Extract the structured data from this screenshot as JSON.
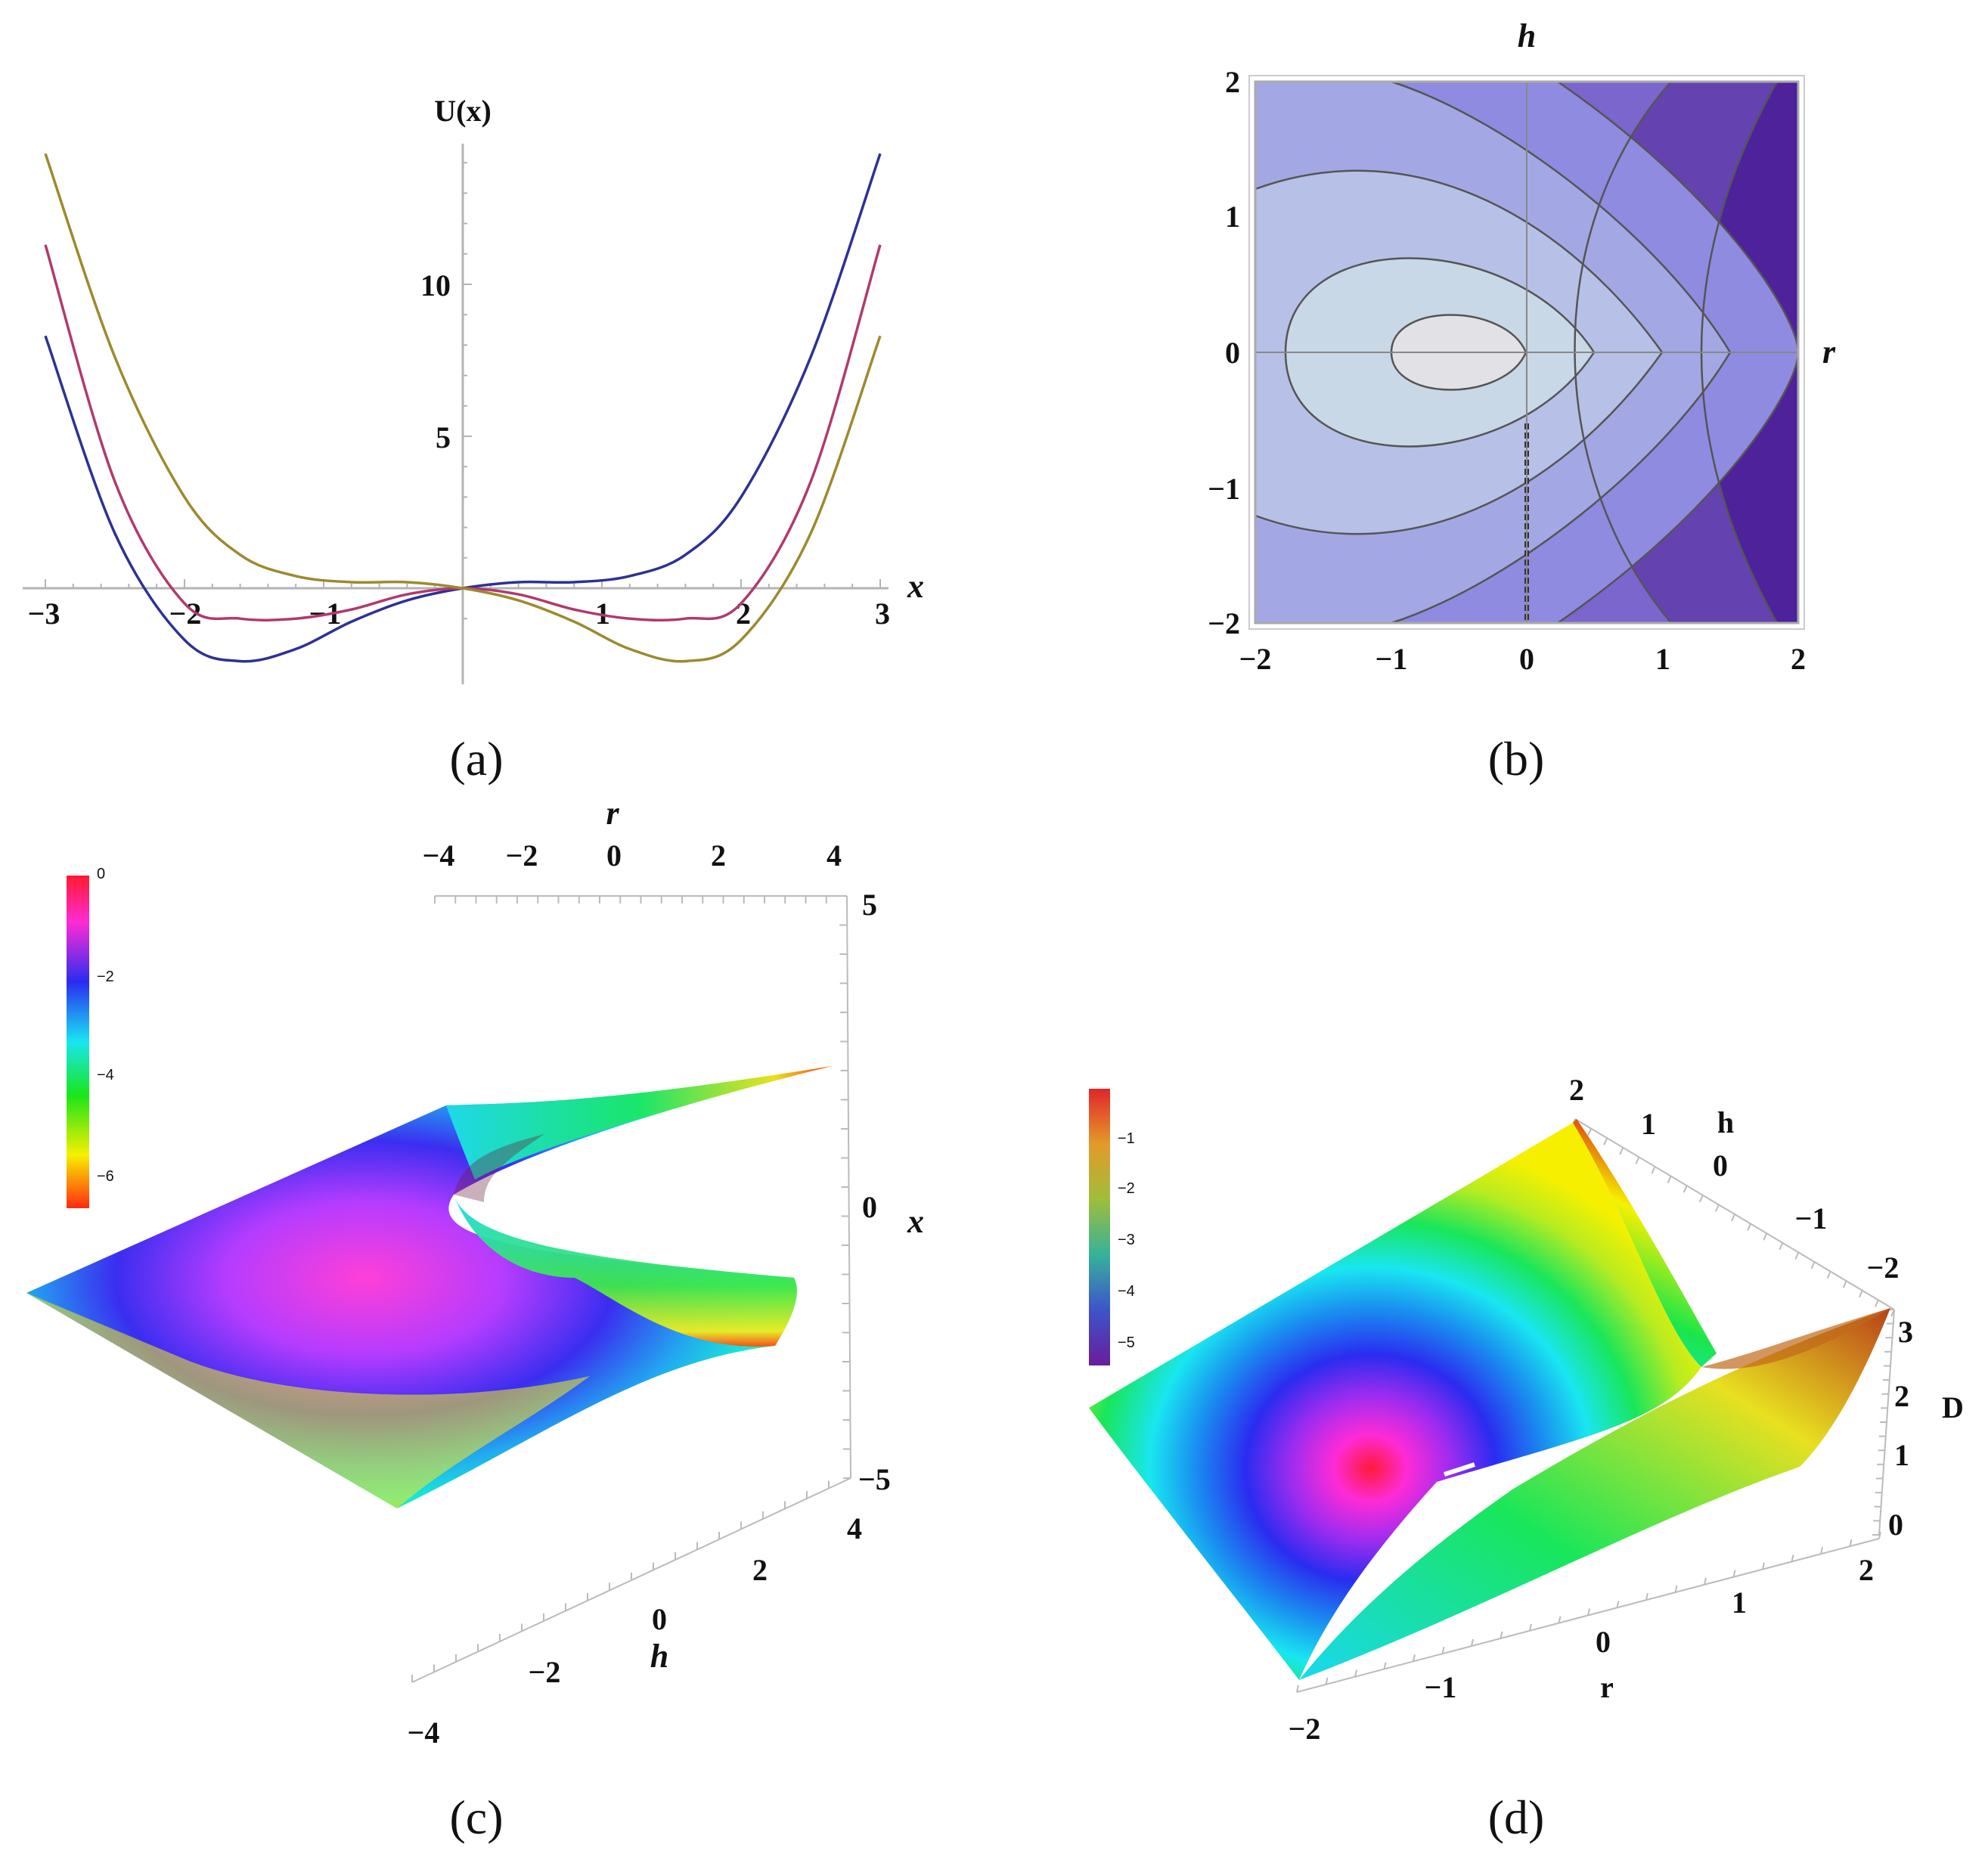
{
  "chart_data": [
    {
      "panel": "a",
      "type": "line",
      "caption": "(a)",
      "xlabel": "x",
      "ylabel": "U(x)",
      "xlim": [
        -3,
        3
      ],
      "ylim": [
        -3,
        14
      ],
      "xticks": [
        "−3",
        "−2",
        "−1",
        "1",
        "2",
        "3"
      ],
      "yticks": [
        "5",
        "10"
      ],
      "series": [
        {
          "color": "#2e3192",
          "x": [
            -3,
            -2.5,
            -2,
            -1.6,
            -1.2,
            -0.8,
            -0.4,
            0,
            0.4,
            0.8,
            1.2,
            1.6,
            2,
            2.5,
            3
          ],
          "y": [
            8.3,
            1.8,
            -1.7,
            -2.4,
            -2.0,
            -1.1,
            -0.4,
            0,
            0.2,
            0.2,
            0.4,
            1.1,
            3.0,
            7.6,
            14.3
          ]
        },
        {
          "color": "#b03a6e",
          "x": [
            -3,
            -2.5,
            -2,
            -1.6,
            -1.2,
            -0.8,
            -0.4,
            0,
            0.4,
            0.8,
            1.2,
            1.6,
            2,
            2.5,
            3
          ],
          "y": [
            11.3,
            3.5,
            -0.5,
            -1.0,
            -1.0,
            -0.7,
            -0.2,
            0,
            -0.2,
            -0.7,
            -1.0,
            -1.0,
            -0.5,
            3.5,
            11.3
          ]
        },
        {
          "color": "#9c8a2e",
          "x": [
            -3,
            -2.5,
            -2,
            -1.6,
            -1.2,
            -0.8,
            -0.4,
            0,
            0.4,
            0.8,
            1.2,
            1.6,
            2,
            2.5,
            3
          ],
          "y": [
            14.3,
            7.6,
            3.0,
            1.1,
            0.4,
            0.2,
            0.2,
            0,
            -0.4,
            -1.1,
            -2.0,
            -2.4,
            -1.7,
            1.8,
            8.3
          ]
        }
      ]
    },
    {
      "panel": "b",
      "type": "contour",
      "caption": "(b)",
      "xlabel": "r",
      "ylabel": "h",
      "xlim": [
        -2,
        2
      ],
      "ylim": [
        -2,
        2
      ],
      "xticks": [
        "−2",
        "−1",
        "0",
        "1",
        "2"
      ],
      "yticks": [
        "−2",
        "−1",
        "0",
        "1",
        "2"
      ],
      "contour_vertices_r": [
        0.5,
        1.0,
        1.5,
        2.0
      ],
      "fill_colors": [
        "#e2e2e6",
        "#c9d8e6",
        "#b7c0e6",
        "#a3a8e4",
        "#8f8be0",
        "#7a66cc",
        "#6443b0",
        "#4d229a"
      ]
    },
    {
      "panel": "c",
      "type": "surface3d",
      "caption": "(c)",
      "xlabel": "x",
      "hlabel": "h",
      "rlabel": "r",
      "r_ticks": [
        "−4",
        "−2",
        "0",
        "2",
        "4"
      ],
      "x_ticks": [
        "5",
        "0",
        "−5"
      ],
      "h_ticks": [
        "−4",
        "−2",
        "0",
        "2",
        "4"
      ],
      "colorbar_ticks": [
        "0",
        "−2",
        "−4",
        "−6"
      ]
    },
    {
      "panel": "d",
      "type": "surface3d",
      "caption": "(d)",
      "hlabel": "h",
      "rlabel": "r",
      "dlabel": "D",
      "h_ticks": [
        "2",
        "1",
        "0",
        "−1",
        "−2"
      ],
      "d_ticks": [
        "3",
        "2",
        "1",
        "0"
      ],
      "r_ticks": [
        "−2",
        "−1",
        "0",
        "1",
        "2"
      ],
      "colorbar_ticks": [
        "−1",
        "−2",
        "−3",
        "−4",
        "−5"
      ]
    }
  ]
}
